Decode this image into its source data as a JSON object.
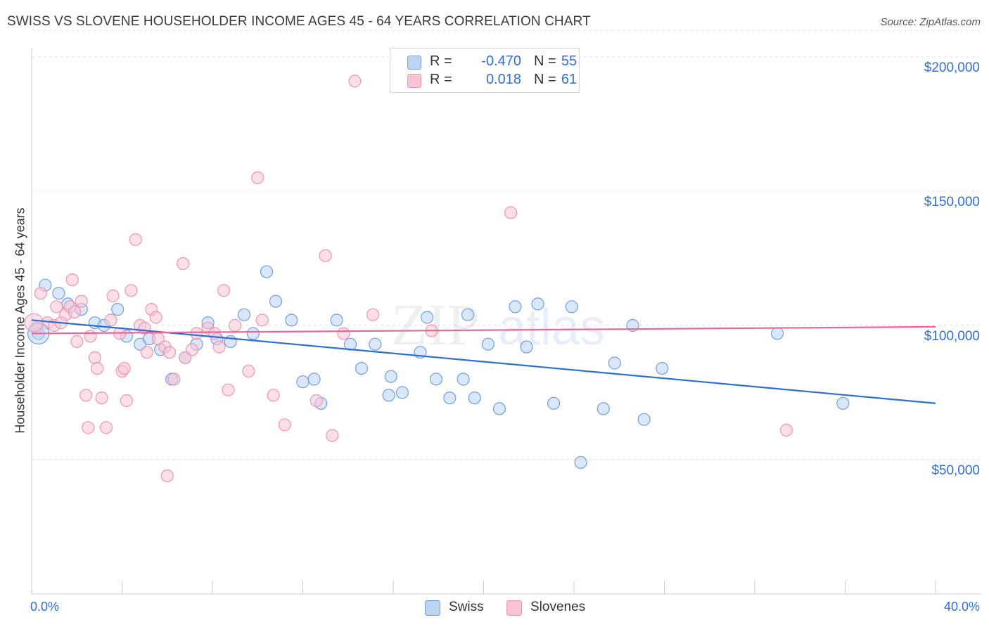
{
  "header": {
    "title": "SWISS VS SLOVENE HOUSEHOLDER INCOME AGES 45 - 64 YEARS CORRELATION CHART",
    "source": "Source: ZipAtlas.com"
  },
  "legend": {
    "rows": [
      {
        "r_label": "R =",
        "r_value": "-0.470",
        "n_label": "N =",
        "n_value": "55",
        "color": "#a9c8f0"
      },
      {
        "r_label": "R =",
        "r_value": "0.018",
        "n_label": "N =",
        "n_value": "61",
        "color": "#f7b9cb"
      }
    ]
  },
  "chart_data": {
    "type": "scatter",
    "title": "SWISS VS SLOVENE HOUSEHOLDER INCOME AGES 45 - 64 YEARS CORRELATION CHART",
    "xlabel": "",
    "ylabel": "Householder Income Ages 45 - 64 years",
    "xlim": [
      0,
      40
    ],
    "ylim": [
      0,
      210000
    ],
    "x_tick_labels": [
      "0.0%",
      "40.0%"
    ],
    "y_ticks": [
      50000,
      100000,
      150000,
      200000
    ],
    "y_tick_labels": [
      "$50,000",
      "$100,000",
      "$150,000",
      "$200,000"
    ],
    "grid": "horizontal dashed",
    "legend_position": "top-center",
    "series": [
      {
        "name": "Swiss",
        "color": "#6f9fdf",
        "fill": "#bcd3f2",
        "trend": {
          "x": [
            0,
            40
          ],
          "y": [
            102000,
            71000
          ]
        },
        "points": [
          [
            0.6,
            115000
          ],
          [
            1.2,
            112000
          ],
          [
            1.6,
            108000
          ],
          [
            2.2,
            106000
          ],
          [
            2.8,
            101000
          ],
          [
            3.2,
            100000
          ],
          [
            3.8,
            106000
          ],
          [
            4.2,
            96000
          ],
          [
            4.8,
            93000
          ],
          [
            5.2,
            95000
          ],
          [
            5.7,
            91000
          ],
          [
            6.2,
            80000
          ],
          [
            6.8,
            88000
          ],
          [
            7.3,
            93000
          ],
          [
            7.8,
            101000
          ],
          [
            8.2,
            95000
          ],
          [
            8.8,
            94000
          ],
          [
            9.4,
            104000
          ],
          [
            9.8,
            97000
          ],
          [
            10.4,
            120000
          ],
          [
            10.8,
            109000
          ],
          [
            11.5,
            102000
          ],
          [
            12.0,
            79000
          ],
          [
            12.5,
            80000
          ],
          [
            12.8,
            71000
          ],
          [
            13.5,
            102000
          ],
          [
            14.1,
            93000
          ],
          [
            14.6,
            84000
          ],
          [
            15.2,
            93000
          ],
          [
            15.8,
            74000
          ],
          [
            15.9,
            81000
          ],
          [
            16.4,
            75000
          ],
          [
            17.2,
            90000
          ],
          [
            17.5,
            103000
          ],
          [
            17.9,
            80000
          ],
          [
            18.5,
            73000
          ],
          [
            19.1,
            80000
          ],
          [
            19.3,
            104000
          ],
          [
            19.6,
            73000
          ],
          [
            20.2,
            93000
          ],
          [
            20.7,
            69000
          ],
          [
            21.4,
            107000
          ],
          [
            21.9,
            92000
          ],
          [
            22.4,
            108000
          ],
          [
            23.1,
            71000
          ],
          [
            23.9,
            107000
          ],
          [
            24.3,
            49000
          ],
          [
            25.3,
            69000
          ],
          [
            25.8,
            86000
          ],
          [
            26.6,
            100000
          ],
          [
            27.1,
            65000
          ],
          [
            27.9,
            84000
          ],
          [
            33.0,
            97000
          ],
          [
            35.9,
            71000
          ],
          [
            0.3,
            97000
          ]
        ]
      },
      {
        "name": "Slovenes",
        "color": "#ee94b2",
        "fill": "#f8c4d4",
        "trend": {
          "x": [
            0,
            40
          ],
          "y": [
            97000,
            99500
          ]
        },
        "points": [
          [
            0.4,
            112000
          ],
          [
            0.7,
            101000
          ],
          [
            1.0,
            100000
          ],
          [
            1.1,
            107000
          ],
          [
            1.5,
            104000
          ],
          [
            1.7,
            107000
          ],
          [
            1.8,
            117000
          ],
          [
            1.9,
            105000
          ],
          [
            2.0,
            94000
          ],
          [
            2.2,
            109000
          ],
          [
            2.4,
            74000
          ],
          [
            2.5,
            62000
          ],
          [
            2.6,
            96000
          ],
          [
            2.8,
            88000
          ],
          [
            2.9,
            84000
          ],
          [
            3.1,
            73000
          ],
          [
            3.3,
            62000
          ],
          [
            3.5,
            102000
          ],
          [
            3.6,
            111000
          ],
          [
            3.9,
            97000
          ],
          [
            4.0,
            83000
          ],
          [
            4.1,
            84000
          ],
          [
            4.2,
            72000
          ],
          [
            4.4,
            113000
          ],
          [
            4.6,
            132000
          ],
          [
            4.8,
            100000
          ],
          [
            5.0,
            99000
          ],
          [
            5.1,
            90000
          ],
          [
            5.3,
            106000
          ],
          [
            5.5,
            103000
          ],
          [
            5.6,
            95000
          ],
          [
            5.9,
            92000
          ],
          [
            6.0,
            44000
          ],
          [
            6.1,
            90000
          ],
          [
            6.3,
            80000
          ],
          [
            6.7,
            123000
          ],
          [
            6.8,
            88000
          ],
          [
            7.1,
            91000
          ],
          [
            7.3,
            97000
          ],
          [
            7.8,
            99000
          ],
          [
            8.1,
            97000
          ],
          [
            8.3,
            92000
          ],
          [
            8.5,
            113000
          ],
          [
            8.7,
            76000
          ],
          [
            9.6,
            83000
          ],
          [
            10.0,
            155000
          ],
          [
            10.2,
            102000
          ],
          [
            10.7,
            74000
          ],
          [
            11.2,
            63000
          ],
          [
            12.6,
            72000
          ],
          [
            13.0,
            126000
          ],
          [
            13.3,
            59000
          ],
          [
            13.8,
            97000
          ],
          [
            14.3,
            191000
          ],
          [
            15.1,
            104000
          ],
          [
            17.7,
            98000
          ],
          [
            21.2,
            142000
          ],
          [
            33.4,
            61000
          ],
          [
            0.2,
            99000
          ],
          [
            1.3,
            101000
          ],
          [
            9.0,
            100000
          ]
        ]
      }
    ]
  },
  "bottom_legend": [
    {
      "label": "Swiss",
      "color": "#bcd3f2",
      "border": "#6f9fdf"
    },
    {
      "label": "Slovenes",
      "color": "#f8c4d4",
      "border": "#ee94b2"
    }
  ],
  "watermark": {
    "zip": "ZIP",
    "atlas": "atlas"
  }
}
